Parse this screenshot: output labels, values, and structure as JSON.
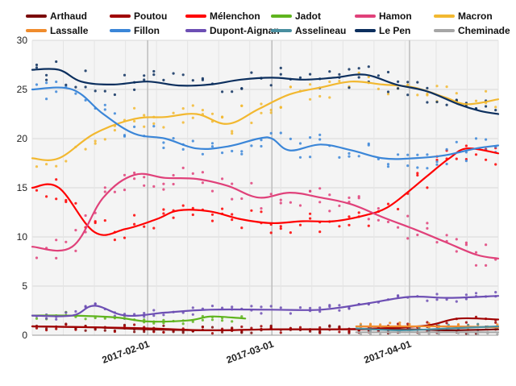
{
  "chart_data": {
    "type": "line",
    "yticks": [
      0,
      5,
      10,
      15,
      20,
      25,
      30
    ],
    "ylim": [
      0,
      30
    ],
    "xlim": [
      "2017-01-06",
      "2017-04-21"
    ],
    "date_labels": [
      {
        "date": "2017-02-01",
        "text": "2017-02-01"
      },
      {
        "date": "2017-03-01",
        "text": "2017-03-01"
      },
      {
        "date": "2017-04-01",
        "text": "2017-04-01"
      }
    ],
    "grid": true,
    "legend_position": "top",
    "series": [
      {
        "name": "Arthaud",
        "color": "#7b0a0a",
        "x": [
          "2017-01-06",
          "2017-01-20",
          "2017-02-01",
          "2017-02-15",
          "2017-03-01",
          "2017-03-15",
          "2017-04-01",
          "2017-04-10",
          "2017-04-21"
        ],
        "y": [
          0.9,
          0.8,
          0.6,
          0.5,
          0.6,
          0.6,
          0.6,
          0.5,
          0.6
        ]
      },
      {
        "name": "Poutou",
        "color": "#a00000",
        "x": [
          "2017-01-06",
          "2017-01-20",
          "2017-02-01",
          "2017-02-15",
          "2017-03-01",
          "2017-03-15",
          "2017-03-25",
          "2017-04-05",
          "2017-04-12",
          "2017-04-21"
        ],
        "y": [
          0.9,
          0.8,
          0.7,
          0.5,
          0.6,
          0.6,
          0.7,
          1.0,
          1.7,
          1.6
        ]
      },
      {
        "name": "Mélenchon",
        "color": "#ff0000",
        "x": [
          "2017-01-06",
          "2017-01-12",
          "2017-01-20",
          "2017-01-27",
          "2017-02-03",
          "2017-02-08",
          "2017-02-15",
          "2017-02-22",
          "2017-03-01",
          "2017-03-08",
          "2017-03-15",
          "2017-03-22",
          "2017-03-27",
          "2017-04-01",
          "2017-04-05",
          "2017-04-10",
          "2017-04-14",
          "2017-04-21"
        ],
        "y": [
          15,
          15,
          10.5,
          10.8,
          11.8,
          12.7,
          12.6,
          11.8,
          11.4,
          11.6,
          11.6,
          12.2,
          13,
          14.7,
          16.2,
          18,
          19,
          18.5
        ]
      },
      {
        "name": "Jadot",
        "color": "#5fb41e",
        "x": [
          "2017-01-06",
          "2017-01-15",
          "2017-01-25",
          "2017-02-01",
          "2017-02-10",
          "2017-02-15",
          "2017-02-20",
          "2017-02-23"
        ],
        "y": [
          2,
          2,
          1.8,
          1.4,
          1.5,
          1.9,
          1.8,
          1.7
        ]
      },
      {
        "name": "Hamon",
        "color": "#e0417a",
        "x": [
          "2017-01-06",
          "2017-01-15",
          "2017-01-22",
          "2017-01-29",
          "2017-02-05",
          "2017-02-12",
          "2017-02-19",
          "2017-02-26",
          "2017-03-05",
          "2017-03-12",
          "2017-03-19",
          "2017-03-26",
          "2017-04-02",
          "2017-04-09",
          "2017-04-16",
          "2017-04-21"
        ],
        "y": [
          9,
          9,
          14,
          16.3,
          16,
          15.9,
          15.2,
          14,
          14.5,
          14,
          13.3,
          12,
          10.8,
          9.5,
          8.2,
          7.8
        ]
      },
      {
        "name": "Macron",
        "color": "#f2b830",
        "x": [
          "2017-01-06",
          "2017-01-12",
          "2017-01-20",
          "2017-01-29",
          "2017-02-05",
          "2017-02-12",
          "2017-02-19",
          "2017-02-26",
          "2017-03-05",
          "2017-03-12",
          "2017-03-19",
          "2017-03-26",
          "2017-04-02",
          "2017-04-09",
          "2017-04-14",
          "2017-04-21"
        ],
        "y": [
          18,
          18,
          20.5,
          22,
          22.2,
          22.5,
          21.5,
          23,
          24.5,
          25.2,
          25.8,
          25.5,
          25.2,
          24.2,
          23.5,
          24
        ]
      },
      {
        "name": "Lassalle",
        "color": "#f08c2d",
        "x": [
          "2017-03-20",
          "2017-03-30",
          "2017-04-10",
          "2017-04-21"
        ],
        "y": [
          0.9,
          0.9,
          0.9,
          0.8
        ]
      },
      {
        "name": "Fillon",
        "color": "#3b86d8",
        "x": [
          "2017-01-06",
          "2017-01-15",
          "2017-01-22",
          "2017-01-29",
          "2017-02-05",
          "2017-02-12",
          "2017-02-19",
          "2017-02-26",
          "2017-03-01",
          "2017-03-05",
          "2017-03-12",
          "2017-03-19",
          "2017-03-26",
          "2017-04-02",
          "2017-04-09",
          "2017-04-16",
          "2017-04-21"
        ],
        "y": [
          25,
          25,
          22.5,
          20.5,
          20,
          19,
          19.2,
          20,
          20,
          18.8,
          19.4,
          18.8,
          18,
          18,
          18.3,
          19,
          19.3
        ]
      },
      {
        "name": "Dupont-Aignan",
        "color": "#6d4fb4",
        "x": [
          "2017-01-06",
          "2017-01-15",
          "2017-01-20",
          "2017-01-27",
          "2017-02-05",
          "2017-02-15",
          "2017-03-01",
          "2017-03-12",
          "2017-03-22",
          "2017-04-01",
          "2017-04-10",
          "2017-04-21"
        ],
        "y": [
          2,
          2,
          3,
          2,
          2.3,
          2.6,
          2.6,
          2.6,
          3.2,
          3.9,
          3.8,
          4
        ]
      },
      {
        "name": "Asselineau",
        "color": "#4a8fa0",
        "x": [
          "2017-03-20",
          "2017-03-30",
          "2017-04-10",
          "2017-04-21"
        ],
        "y": [
          0.7,
          0.5,
          0.7,
          0.9
        ]
      },
      {
        "name": "Le Pen",
        "color": "#0c2f5e",
        "x": [
          "2017-01-06",
          "2017-01-12",
          "2017-01-17",
          "2017-01-24",
          "2017-02-01",
          "2017-02-08",
          "2017-02-15",
          "2017-02-22",
          "2017-03-01",
          "2017-03-08",
          "2017-03-15",
          "2017-03-22",
          "2017-03-29",
          "2017-04-05",
          "2017-04-12",
          "2017-04-17",
          "2017-04-21"
        ],
        "y": [
          27,
          27,
          25.8,
          25.5,
          25.8,
          25.4,
          25.5,
          26,
          26.2,
          26,
          26.2,
          26.5,
          25.5,
          24.8,
          23.5,
          22.8,
          22.5
        ]
      },
      {
        "name": "Cheminade",
        "color": "#a6a6a6",
        "x": [
          "2017-03-20",
          "2017-03-30",
          "2017-04-10",
          "2017-04-21"
        ],
        "y": [
          0.3,
          0.3,
          0.3,
          0.3
        ]
      }
    ]
  }
}
